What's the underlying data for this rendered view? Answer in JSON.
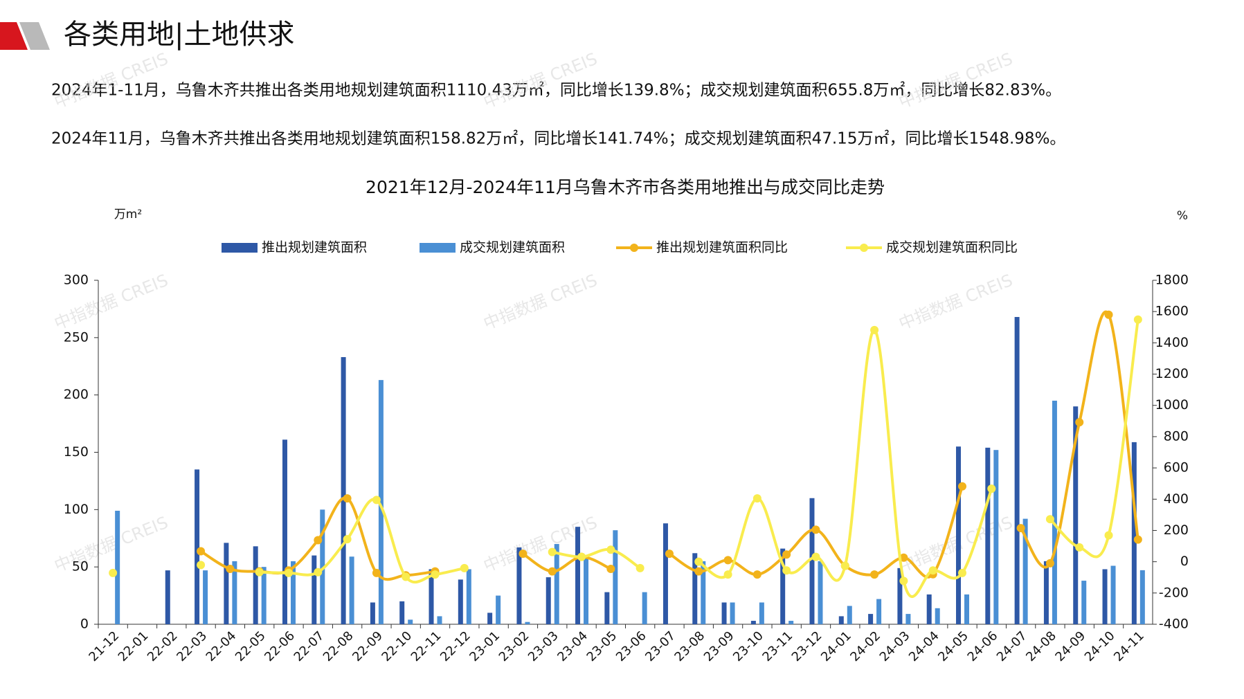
{
  "header": {
    "title": "各类用地|土地供求"
  },
  "paragraphs": [
    "2024年1-11月，乌鲁木齐共推出各类用地规划建筑面积1110.43万㎡，同比增长139.8%；成交规划建筑面积655.8万㎡，同比增长82.83%。",
    "2024年11月，乌鲁木齐共推出各类用地规划建筑面积158.82万㎡，同比增长141.74%；成交规划建筑面积47.15万㎡，同比增长1548.98%。"
  ],
  "watermark": "中指数据 CREIS",
  "chart_data": {
    "type": "bar-line",
    "title": "2021年12月-2024年11月乌鲁木齐市各类用地推出与成交同比走势",
    "y_label": "万m²",
    "y2_label": "%",
    "categories": [
      "21-12",
      "22-01",
      "22-02",
      "22-03",
      "22-04",
      "22-05",
      "22-06",
      "22-07",
      "22-08",
      "22-09",
      "22-10",
      "22-11",
      "22-12",
      "23-01",
      "23-02",
      "23-03",
      "23-04",
      "23-05",
      "23-06",
      "23-07",
      "23-08",
      "23-09",
      "23-10",
      "23-11",
      "23-12",
      "24-01",
      "24-02",
      "24-03",
      "24-04",
      "24-05",
      "24-06",
      "24-07",
      "24-08",
      "24-09",
      "24-10",
      "24-11"
    ],
    "series": [
      {
        "name": "推出规划建筑面积",
        "type": "bar",
        "color": "#2e58a6",
        "values": [
          0,
          0,
          47,
          135,
          71,
          68,
          161,
          60,
          233,
          19,
          20,
          48,
          39,
          10,
          67,
          41,
          85,
          28,
          0,
          88,
          62,
          19,
          3,
          66,
          110,
          7,
          9,
          49,
          26,
          155,
          154,
          268,
          55,
          190,
          48,
          158.82
        ]
      },
      {
        "name": "成交规划建筑面积",
        "type": "bar",
        "color": "#4a8fd4",
        "values": [
          99,
          0,
          0,
          47,
          55,
          50,
          55,
          100,
          59,
          213,
          4,
          7,
          48,
          25,
          2,
          70,
          60,
          82,
          28,
          0,
          55,
          19,
          19,
          3,
          55,
          16,
          22,
          9,
          14,
          26,
          152,
          92,
          195,
          38,
          51,
          47.15
        ]
      },
      {
        "name": "推出规划建筑面积同比",
        "type": "line",
        "axis": "y2",
        "color": "#f2b31b",
        "values": [
          null,
          null,
          null,
          67,
          -46,
          -62,
          -56,
          138,
          405,
          -72,
          -87,
          -62,
          null,
          null,
          51,
          -62,
          31,
          -46,
          null,
          51,
          -62,
          10,
          -82,
          46,
          205,
          -26,
          -82,
          26,
          -80,
          482,
          null,
          215,
          -10,
          892,
          1580,
          141.74
        ]
      },
      {
        "name": "成交规划建筑面积同比",
        "type": "line",
        "axis": "y2",
        "color": "#f9ec4e",
        "values": [
          -72,
          null,
          null,
          -21,
          null,
          -67,
          -72,
          -67,
          144,
          395,
          -97,
          -82,
          -41,
          null,
          null,
          62,
          31,
          77,
          -41,
          null,
          0,
          -82,
          405,
          -56,
          31,
          -26,
          1482,
          -123,
          -56,
          -72,
          467,
          null,
          272,
          92,
          169,
          1548.98
        ]
      }
    ],
    "ylim": [
      0,
      300
    ],
    "yticks": [
      0,
      50,
      100,
      150,
      200,
      250,
      300
    ],
    "y2lim": [
      -400,
      1800
    ],
    "y2ticks": [
      -400,
      -200,
      0,
      200,
      400,
      600,
      800,
      1000,
      1200,
      1400,
      1600,
      1800
    ],
    "legend": "top"
  }
}
